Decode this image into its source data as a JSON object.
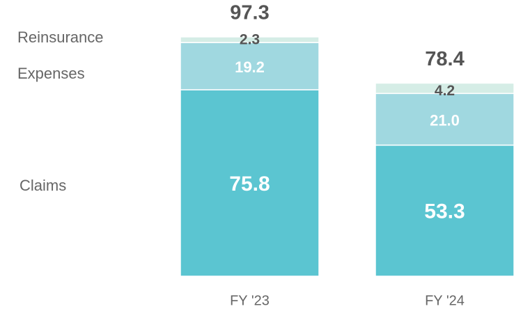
{
  "chart_data": {
    "type": "stacked_bar",
    "categories": [
      "FY '23",
      "FY '24"
    ],
    "series": [
      {
        "name": "Claims",
        "color": "#5bc5d1",
        "values": [
          75.8,
          53.3
        ]
      },
      {
        "name": "Expenses",
        "color": "#a0d8e0",
        "values": [
          19.2,
          21.0
        ],
        "value_labels": [
          "19.2",
          "21.0"
        ]
      },
      {
        "name": "Reinsurance",
        "color": "#d5ede6",
        "values": [
          2.3,
          4.2
        ]
      }
    ],
    "totals": [
      97.3,
      78.4
    ]
  }
}
